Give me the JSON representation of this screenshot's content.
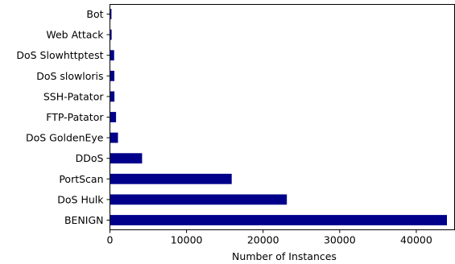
{
  "chart_data": {
    "type": "bar",
    "orientation": "horizontal",
    "categories": [
      "BENIGN",
      "DoS Hulk",
      "PortScan",
      "DDoS",
      "DoS GoldenEye",
      "FTP-Patator",
      "SSH-Patator",
      "DoS slowloris",
      "DoS Slowhttptest",
      "Web Attack",
      "Bot"
    ],
    "values": [
      44000,
      23100,
      15900,
      4200,
      1050,
      800,
      590,
      580,
      550,
      220,
      200
    ],
    "xlabel": "Number of Instances",
    "ylabel": "",
    "title": "",
    "xlim": [
      0,
      45000
    ],
    "xticks": [
      0,
      10000,
      20000,
      30000,
      40000
    ],
    "xtick_labels": [
      "0",
      "10000",
      "20000",
      "30000",
      "40000"
    ],
    "bar_color": "#00008b",
    "grid": false,
    "legend": "none"
  }
}
